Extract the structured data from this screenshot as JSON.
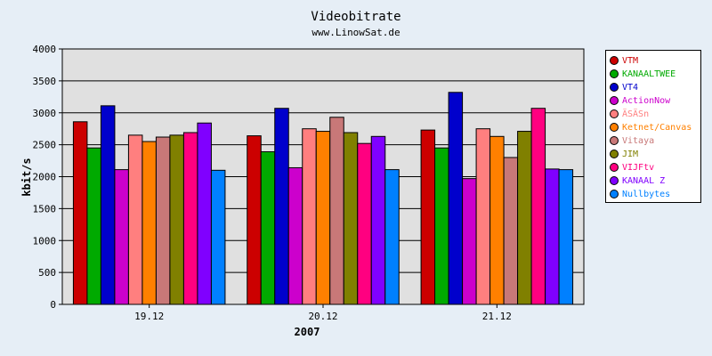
{
  "chart_data": {
    "type": "bar",
    "title": "Videobitrate",
    "subtitle": "www.LinowSat.de",
    "xlabel": "2007",
    "ylabel": "kbit/s",
    "ylim": [
      0,
      4000
    ],
    "yticks": [
      0,
      500,
      1000,
      1500,
      2000,
      2500,
      3000,
      3500,
      4000
    ],
    "grid": true,
    "legend_position": "right",
    "categories": [
      "19.12",
      "20.12",
      "21.12"
    ],
    "series": [
      {
        "name": "VTM",
        "color": "#cc0000",
        "values": [
          2860,
          2640,
          2730
        ]
      },
      {
        "name": "KANAALTWEE",
        "color": "#00aa00",
        "values": [
          2450,
          2390,
          2450
        ]
      },
      {
        "name": "VT4",
        "color": "#0000cc",
        "values": [
          3110,
          3070,
          3320
        ]
      },
      {
        "name": "ActionNow",
        "color": "#cc00cc",
        "values": [
          2110,
          2140,
          1970
        ]
      },
      {
        "name": "ÄSÄSn",
        "color": "#ff7f7f",
        "values": [
          2650,
          2750,
          2750
        ]
      },
      {
        "name": "Ketnet/Canvas",
        "color": "#ff8000",
        "values": [
          2550,
          2710,
          2630
        ]
      },
      {
        "name": "Vitaya",
        "color": "#c87878",
        "values": [
          2620,
          2930,
          2300
        ]
      },
      {
        "name": "JIM",
        "color": "#808000",
        "values": [
          2650,
          2690,
          2710
        ]
      },
      {
        "name": "VIJFtv",
        "color": "#ff0080",
        "values": [
          2690,
          2520,
          3070
        ]
      },
      {
        "name": "KANAAL Z",
        "color": "#8000ff",
        "values": [
          2840,
          2630,
          2120
        ]
      },
      {
        "name": "Nullbytes",
        "color": "#0080ff",
        "values": [
          2100,
          2110,
          2110
        ]
      }
    ]
  }
}
